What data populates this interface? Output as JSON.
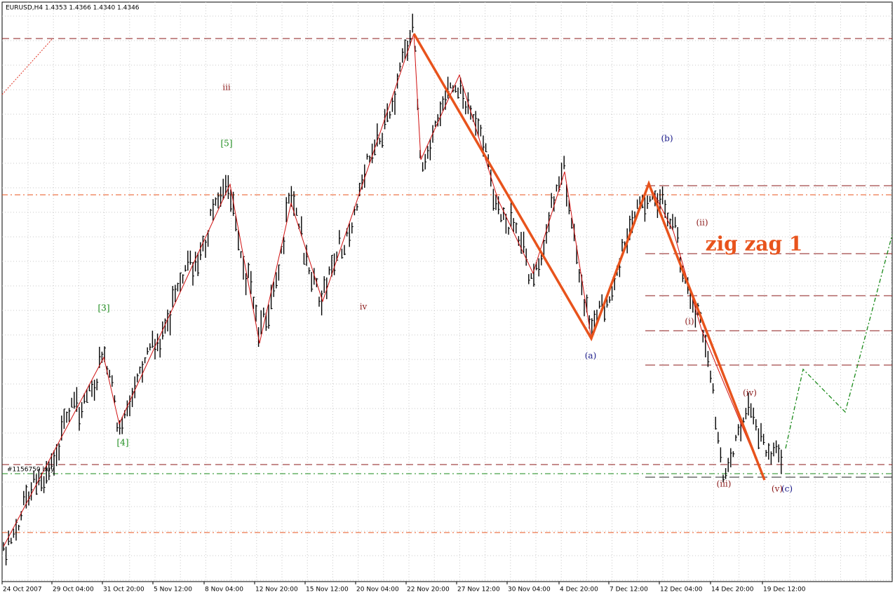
{
  "header": {
    "title": "EURUSD,H4  1.4353 1.4366 1.4340 1.4346"
  },
  "order_label": "#1156750 buy",
  "annotation": "zig zag 1",
  "wave_labels": [
    "iii",
    "[5]",
    "[3]",
    "[4]",
    "iv",
    "(b)",
    "(a)",
    "(ii)",
    "(i)",
    "(iv)",
    "(iii)",
    "(v)",
    "(c)"
  ],
  "time_axis": [
    "24 Oct 2007",
    "29 Oct 04:00",
    "31 Oct 20:00",
    "5 Nov 12:00",
    "8 Nov 04:00",
    "12 Nov 20:00",
    "15 Nov 12:00",
    "20 Nov 04:00",
    "22 Nov 20:00",
    "27 Nov 12:00",
    "30 Nov 04:00",
    "4 Dec 20:00",
    "7 Dec 12:00",
    "12 Dec 04:00",
    "14 Dec 20:00",
    "19 Dec 12:00"
  ]
}
